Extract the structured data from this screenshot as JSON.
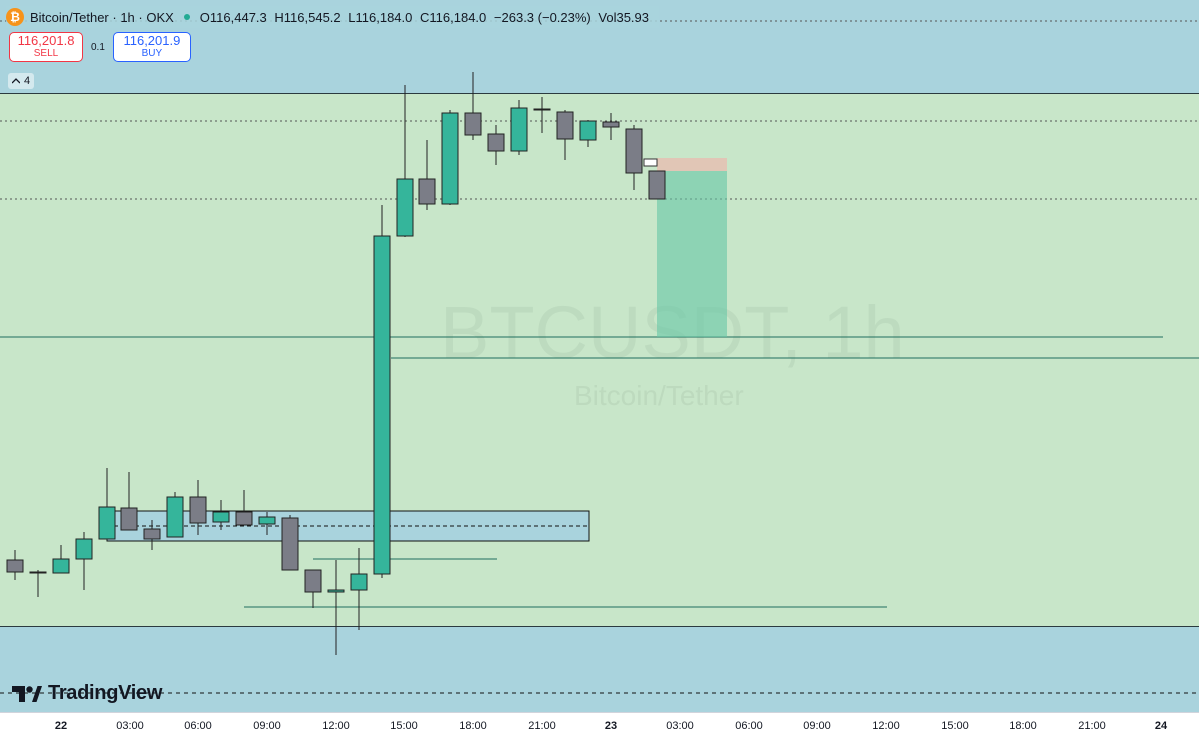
{
  "legend": {
    "symbol_logo": "₿",
    "title": "Bitcoin/Tether · 1h · OKX",
    "open": "O116,447.3",
    "high": "H116,545.2",
    "low": "L116,184.0",
    "close": "C116,184.0",
    "change": "−263.3 (−0.23%)",
    "volume": "Vol35.93"
  },
  "trade": {
    "sell_price": "116,201.8",
    "sell_label": "SELL",
    "spread": "0.1",
    "buy_price": "116,201.9",
    "buy_label": "BUY"
  },
  "indicators": {
    "collapse_count": "4"
  },
  "watermark": {
    "symbol": "BTCUSDT, 1h",
    "name": "Bitcoin/Tether"
  },
  "branding": {
    "wordmark": "TradingView"
  },
  "xaxis": {
    "ticks": [
      "22",
      "03:00",
      "06:00",
      "09:00",
      "12:00",
      "15:00",
      "18:00",
      "21:00",
      "23",
      "03:00",
      "06:00",
      "09:00",
      "12:00",
      "15:00",
      "18:00",
      "21:00",
      "24"
    ]
  },
  "colors": {
    "bull": "#35b59b",
    "bear": "#7b7d87",
    "zone_band": "#c8e6c9",
    "outer_bg": "#a9d3dd",
    "line": "#1f6f5e"
  },
  "chart_data": {
    "type": "candlestick",
    "interval": "1h",
    "symbol": "Bitcoin/Tether",
    "last_candle": {
      "open": 116447.3,
      "high": 116545.2,
      "low": 116184.0,
      "close": 116184.0
    }
  }
}
